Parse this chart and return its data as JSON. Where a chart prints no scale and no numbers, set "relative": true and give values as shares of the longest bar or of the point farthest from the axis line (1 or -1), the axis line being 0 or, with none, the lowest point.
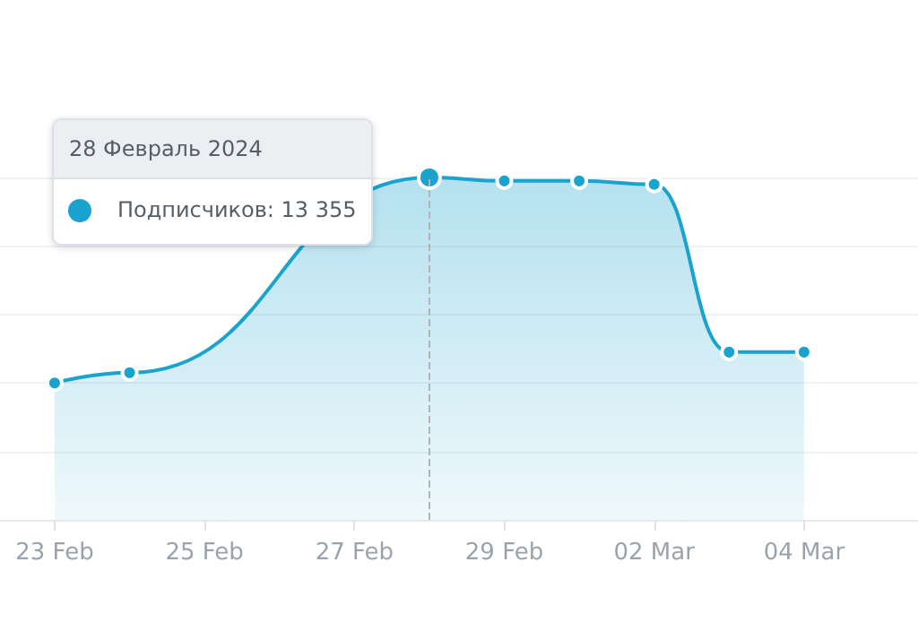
{
  "chart_data": {
    "type": "area",
    "relative": true,
    "grid": "y",
    "marker": "circle",
    "line_style": "solid",
    "x": [
      "2024-02-23",
      "2024-02-24",
      "2024-02-28",
      "2024-02-29",
      "2024-03-01",
      "2024-03-02",
      "2024-03-03",
      "2024-03-04"
    ],
    "series": [
      {
        "color": "#1ba3cf",
        "values": [
          0.4,
          0.43,
          1,
          0.99,
          0.99,
          0.98,
          0.49,
          0.49
        ]
      }
    ],
    "xlim": [
      "2024-02-22T06:30",
      "2024-03-05T12:30"
    ],
    "xticks": [
      {
        "value": "2024-02-23",
        "label": "23 Feb"
      },
      {
        "value": "2024-02-25",
        "label": "25 Feb"
      },
      {
        "value": "2024-02-27",
        "label": "27 Feb"
      },
      {
        "value": "2024-02-29",
        "label": "29 Feb"
      },
      {
        "value": "2024-03-02",
        "label": "02 Mar"
      },
      {
        "value": "2024-03-04",
        "label": "04 Mar"
      }
    ],
    "ref_lines": [
      {
        "axis": "x",
        "value": "2024-02-28",
        "color": "#b0b4b8",
        "line_style": "dashed"
      }
    ],
    "annotations": [
      "28 Февраль 2024",
      "Подписчиков:  13 355"
    ]
  }
}
